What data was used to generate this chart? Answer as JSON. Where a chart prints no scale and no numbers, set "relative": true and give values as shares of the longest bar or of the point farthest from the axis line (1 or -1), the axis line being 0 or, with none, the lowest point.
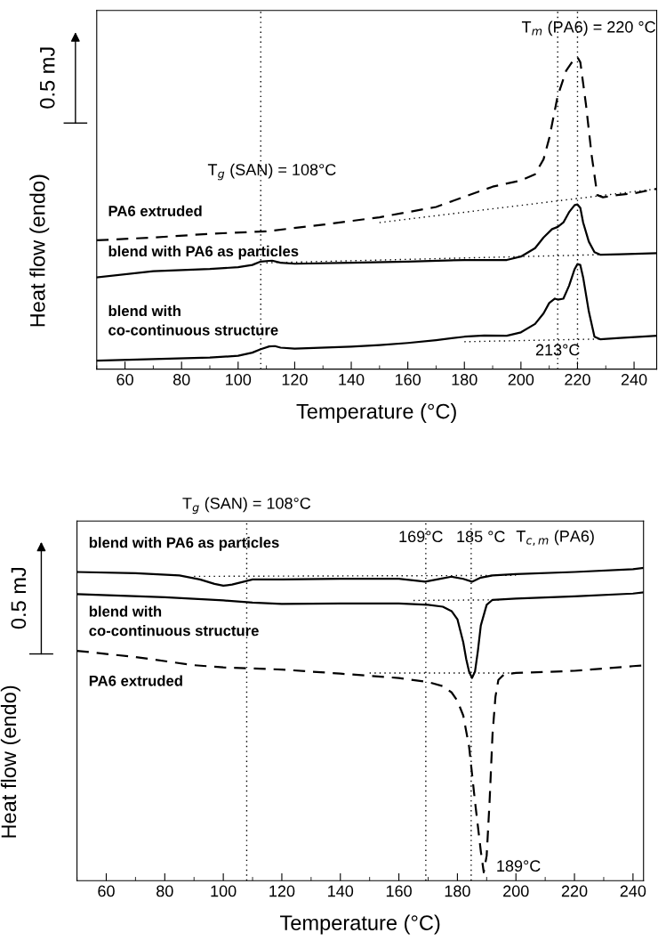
{
  "chart_data": [
    {
      "type": "line",
      "relative": true,
      "xlabel": "Temperature (°C)",
      "ylabel": "Heat flow (endo)",
      "xlim": [
        50,
        248
      ],
      "xticks": [
        60,
        80,
        100,
        120,
        140,
        160,
        180,
        200,
        220,
        240
      ],
      "tick_labels": "x",
      "grid": false,
      "legend": false,
      "marker": "none",
      "series": [
        {
          "name": "PA6 extruded",
          "color": "#000000",
          "line_style": "dashed",
          "x": [
            50,
            70,
            90,
            110,
            130,
            150,
            170,
            190,
            200,
            205,
            208,
            210,
            213,
            216,
            219,
            220,
            221,
            223,
            225,
            227,
            229,
            234,
            240,
            248
          ],
          "values": [
            0.413,
            0.422,
            0.434,
            0.442,
            0.463,
            0.487,
            0.52,
            0.585,
            0.605,
            0.625,
            0.673,
            0.74,
            0.876,
            0.957,
            0.997,
            1,
            0.984,
            0.848,
            0.686,
            0.558,
            0.551,
            0.558,
            0.564,
            0.578
          ]
        },
        {
          "name": "blend with PA6 as particles",
          "color": "#000000",
          "line_style": "solid",
          "x": [
            50,
            70,
            90,
            100,
            105,
            108,
            112,
            115,
            120,
            140,
            160,
            180,
            195,
            200,
            205,
            208,
            211,
            213,
            215,
            217,
            219,
            220,
            221,
            222,
            224,
            226,
            228,
            235,
            248
          ],
          "values": [
            0.294,
            0.314,
            0.321,
            0.327,
            0.334,
            0.345,
            0.348,
            0.341,
            0.338,
            0.341,
            0.345,
            0.35,
            0.35,
            0.361,
            0.388,
            0.422,
            0.449,
            0.456,
            0.47,
            0.503,
            0.526,
            0.528,
            0.517,
            0.47,
            0.409,
            0.375,
            0.367,
            0.368,
            0.372
          ]
        },
        {
          "name": "blend with\nco-continuous structure",
          "color": "#000000",
          "line_style": "solid",
          "x": [
            50,
            70,
            90,
            100,
            105,
            108,
            111,
            113,
            115,
            120,
            140,
            150,
            160,
            170,
            180,
            187,
            195,
            200,
            205,
            208,
            210,
            212,
            213,
            215,
            217,
            219,
            220,
            221,
            222,
            224,
            226,
            228,
            235,
            248
          ],
          "values": [
            0.027,
            0.032,
            0.037,
            0.043,
            0.053,
            0.064,
            0.073,
            0.074,
            0.069,
            0.066,
            0.072,
            0.077,
            0.084,
            0.093,
            0.104,
            0.108,
            0.107,
            0.118,
            0.145,
            0.179,
            0.212,
            0.226,
            0.223,
            0.226,
            0.267,
            0.321,
            0.337,
            0.334,
            0.294,
            0.185,
            0.104,
            0.096,
            0.1,
            0.107
          ]
        },
        {
          "color": "#000000",
          "line_style": "dotted",
          "x": [
            150,
            248
          ],
          "values": [
            0.47,
            0.578
          ]
        },
        {
          "color": "#000000",
          "line_style": "dotted",
          "x": [
            110,
            228
          ],
          "values": [
            0.341,
            0.367
          ]
        },
        {
          "color": "#000000",
          "line_style": "dotted",
          "x": [
            180,
            230
          ],
          "values": [
            0.088,
            0.097
          ]
        }
      ],
      "ref_lines": [
        {
          "axis": "x",
          "value": 108,
          "color": "#000000",
          "line_style": "dotted",
          "label": "T$_{g}$ (SAN) = 108°C"
        },
        {
          "axis": "x",
          "value": 213,
          "color": "#000000",
          "line_style": "dotted",
          "label": "213°C"
        },
        {
          "axis": "x",
          "value": 220,
          "color": "#000000",
          "line_style": "dotted",
          "label": "T$_{m}$ (PA6) = 220 °C"
        }
      ],
      "annotations": [
        "0.5 mJ"
      ]
    },
    {
      "type": "line",
      "relative": true,
      "xlabel": "Temperature (°C)",
      "ylabel": "Heat flow (endo)",
      "xlim": [
        50,
        243.6
      ],
      "xticks": [
        60,
        80,
        100,
        120,
        140,
        160,
        180,
        200,
        220,
        240
      ],
      "tick_labels": "x",
      "grid": false,
      "legend": false,
      "marker": "none",
      "series": [
        {
          "name": "blend with PA6 as particles",
          "color": "#000000",
          "line_style": "solid",
          "x": [
            50,
            70,
            85,
            92,
            97,
            100,
            103,
            107,
            110,
            120,
            140,
            160,
            169,
            173,
            178,
            182,
            185,
            188,
            192,
            200,
            220,
            240,
            243.6
          ],
          "values": [
            0.987,
            0.983,
            0.976,
            0.963,
            0.949,
            0.943,
            0.947,
            0.956,
            0.963,
            0.963,
            0.965,
            0.965,
            0.956,
            0.963,
            0.972,
            0.965,
            0.956,
            0.969,
            0.976,
            0.98,
            0.987,
            0.996,
            1
          ]
        },
        {
          "name": "blend with\nco-continuous structure",
          "color": "#000000",
          "line_style": "solid",
          "x": [
            50,
            80,
            100,
            110,
            120,
            140,
            160,
            170,
            175,
            178,
            180,
            182,
            183,
            184,
            185,
            186,
            187,
            188,
            190,
            192,
            200,
            220,
            240,
            243.6
          ],
          "values": [
            0.916,
            0.906,
            0.896,
            0.889,
            0.885,
            0.886,
            0.886,
            0.882,
            0.876,
            0.862,
            0.836,
            0.762,
            0.709,
            0.668,
            0.648,
            0.668,
            0.735,
            0.816,
            0.882,
            0.898,
            0.902,
            0.909,
            0.918,
            0.922
          ]
        },
        {
          "name": "PA6 extruded",
          "color": "#000000",
          "line_style": "dashed",
          "x": [
            50,
            70,
            90,
            100,
            120,
            140,
            160,
            170,
            175,
            178,
            180,
            182,
            184,
            186,
            188,
            189,
            190,
            191,
            192,
            193,
            194,
            196,
            200,
            220,
            240,
            243.6
          ],
          "values": [
            0.735,
            0.715,
            0.689,
            0.682,
            0.675,
            0.662,
            0.648,
            0.635,
            0.622,
            0.602,
            0.575,
            0.528,
            0.428,
            0.254,
            0.094,
            0.027,
            0.08,
            0.254,
            0.468,
            0.588,
            0.642,
            0.66,
            0.664,
            0.671,
            0.686,
            0.688
          ]
        },
        {
          "color": "#000000",
          "line_style": "dotted",
          "x": [
            90,
            200
          ],
          "values": [
            0.973,
            0.976
          ]
        },
        {
          "color": "#000000",
          "line_style": "dotted",
          "x": [
            165,
            195
          ],
          "values": [
            0.896,
            0.898
          ]
        },
        {
          "color": "#000000",
          "line_style": "dotted",
          "x": [
            150,
            200
          ],
          "values": [
            0.664,
            0.664
          ]
        }
      ],
      "ref_lines": [
        {
          "axis": "x",
          "value": 108,
          "color": "#000000",
          "line_style": "dotted",
          "label": "T$_{g}$ (SAN) = 108°C"
        },
        {
          "axis": "x",
          "value": 169.2,
          "color": "#000000",
          "line_style": "dotted",
          "label": "169°C"
        },
        {
          "axis": "x",
          "value": 184.7,
          "color": "#000000",
          "line_style": "dotted",
          "label": "185 °C"
        }
      ],
      "annotations": [
        "0.5 mJ",
        "T$_{c,m}$ (PA6)",
        {
          "text": "189°C",
          "x": 189,
          "y": 0.027
        }
      ]
    }
  ]
}
